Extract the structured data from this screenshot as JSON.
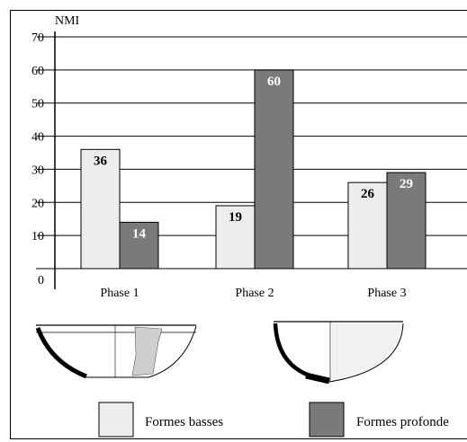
{
  "chart_data": {
    "type": "bar",
    "title": "",
    "ylabel": "NMI",
    "xlabel": "",
    "ylim": [
      0,
      70
    ],
    "yticks": [
      0,
      10,
      20,
      30,
      40,
      50,
      60,
      70
    ],
    "grid": true,
    "categories": [
      "Phase 1",
      "Phase 2",
      "Phase 3"
    ],
    "series": [
      {
        "name": "Formes basses",
        "values": [
          36,
          19,
          26
        ],
        "color": "#ededed"
      },
      {
        "name": "Formes profondes",
        "values": [
          14,
          60,
          29
        ],
        "color": "#7a7a7a"
      }
    ],
    "legend_position": "bottom",
    "legend_labels": [
      "Formes basses",
      "Formes profonde"
    ]
  },
  "illustrations": [
    {
      "icon": "shallow-bowl-drawing"
    },
    {
      "icon": "deep-bowl-drawing"
    }
  ]
}
